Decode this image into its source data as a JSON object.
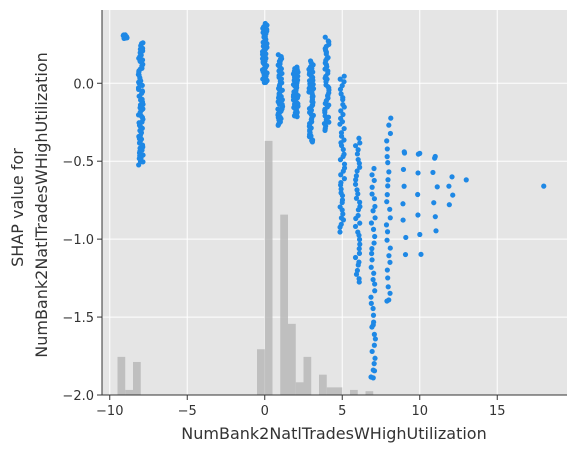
{
  "chart_data": {
    "type": "scatter",
    "xlabel": "NumBank2NatlTradesWHighUtilization",
    "ylabel_lines": [
      "SHAP value for",
      "NumBank2NatlTradesWHighUtilization"
    ],
    "xlim": [
      -10.5,
      19.5
    ],
    "ylim": [
      -2.0,
      0.47
    ],
    "x_ticks": [
      -10,
      -5,
      0,
      5,
      10,
      15
    ],
    "x_tick_labels": [
      "−10",
      "−5",
      "0",
      "5",
      "10",
      "15"
    ],
    "y_ticks": [
      -2.0,
      -1.5,
      -1.0,
      -0.5,
      0.0
    ],
    "y_tick_labels": [
      "−2.0",
      "−1.5",
      "−1.0",
      "−0.5",
      "0.0"
    ],
    "grid": true,
    "colors": {
      "point": "#1e88e5",
      "histogram": "#b8b8b8",
      "background": "#e5e5e5",
      "grid": "#ffffff"
    },
    "histogram": {
      "bin_width": 0.5,
      "bins": [
        {
          "x": -9.25,
          "rel": 0.15
        },
        {
          "x": -8.75,
          "rel": 0.02
        },
        {
          "x": -8.25,
          "rel": 0.13
        },
        {
          "x": -0.25,
          "rel": 0.18
        },
        {
          "x": 0.25,
          "rel": 1.0
        },
        {
          "x": 1.25,
          "rel": 0.71
        },
        {
          "x": 1.75,
          "rel": 0.28
        },
        {
          "x": 2.25,
          "rel": 0.05
        },
        {
          "x": 2.75,
          "rel": 0.15
        },
        {
          "x": 3.75,
          "rel": 0.08
        },
        {
          "x": 4.25,
          "rel": 0.03
        },
        {
          "x": 4.75,
          "rel": 0.03
        },
        {
          "x": 5.75,
          "rel": 0.02
        },
        {
          "x": 6.75,
          "rel": 0.015
        }
      ]
    },
    "clusters": [
      {
        "x": -9.0,
        "y_min": 0.29,
        "y_max": 0.31,
        "n": 10
      },
      {
        "x": -8.0,
        "y_min": -0.52,
        "y_max": 0.26,
        "n": 75
      },
      {
        "x": 0.0,
        "y_min": 0.0,
        "y_max": 0.38,
        "n": 70
      },
      {
        "x": 1.0,
        "y_min": -0.27,
        "y_max": 0.18,
        "n": 55
      },
      {
        "x": 2.0,
        "y_min": -0.22,
        "y_max": 0.1,
        "n": 50
      },
      {
        "x": 3.0,
        "y_min": -0.38,
        "y_max": 0.14,
        "n": 50
      },
      {
        "x": 4.0,
        "y_min": -0.3,
        "y_max": 0.29,
        "n": 45
      },
      {
        "x": 5.0,
        "y_min": -0.95,
        "y_max": 0.05,
        "n": 45
      },
      {
        "x": 6.0,
        "y_min": -1.28,
        "y_max": -0.35,
        "n": 35
      },
      {
        "x": 7.0,
        "y_min": -1.88,
        "y_max": -0.55,
        "n": 35
      },
      {
        "x": 8.0,
        "y_min": -1.4,
        "y_max": -0.22,
        "n": 25
      },
      {
        "x": 9.0,
        "y_min": -1.1,
        "y_max": -0.45,
        "n": 7
      },
      {
        "x": 10.0,
        "y_min": -1.1,
        "y_max": -0.45,
        "n": 6
      },
      {
        "x": 11.0,
        "y_min": -0.95,
        "y_max": -0.48,
        "n": 6
      },
      {
        "x": 12.0,
        "y_min": -0.78,
        "y_max": -0.6,
        "n": 4
      }
    ],
    "points": [
      {
        "x": 7.0,
        "y": -1.84
      },
      {
        "x": 7.0,
        "y": -1.89
      },
      {
        "x": 7.0,
        "y": -1.55
      },
      {
        "x": 8.0,
        "y": -1.39
      },
      {
        "x": 9.0,
        "y": -0.44
      },
      {
        "x": 10.0,
        "y": -0.45
      },
      {
        "x": 11.0,
        "y": -0.47
      },
      {
        "x": 13.0,
        "y": -0.62
      },
      {
        "x": 18.0,
        "y": -0.66
      }
    ]
  }
}
